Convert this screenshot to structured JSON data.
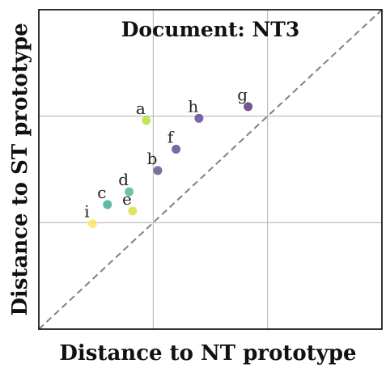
{
  "chart_data": {
    "type": "scatter",
    "title": "Document: NT3",
    "xlabel": "Distance to NT prototype",
    "ylabel": "Distance to ST prototype",
    "xlim": [
      0,
      3
    ],
    "ylim": [
      0,
      3
    ],
    "grid": true,
    "diagonal_reference": true,
    "points": [
      {
        "label": "a",
        "x": 0.94,
        "y": 1.96,
        "color": "#b5de2b"
      },
      {
        "label": "b",
        "x": 1.04,
        "y": 1.49,
        "color": "#5f4a8b"
      },
      {
        "label": "c",
        "x": 0.6,
        "y": 1.17,
        "color": "#3aa88f"
      },
      {
        "label": "d",
        "x": 0.79,
        "y": 1.29,
        "color": "#4fae97"
      },
      {
        "label": "e",
        "x": 0.82,
        "y": 1.11,
        "color": "#d6e03a"
      },
      {
        "label": "f",
        "x": 1.2,
        "y": 1.69,
        "color": "#5b4090"
      },
      {
        "label": "g",
        "x": 1.83,
        "y": 2.09,
        "color": "#532b74"
      },
      {
        "label": "h",
        "x": 1.4,
        "y": 1.98,
        "color": "#5a3f8d"
      },
      {
        "label": "i",
        "x": 0.47,
        "y": 0.99,
        "color": "#f6e75a"
      }
    ]
  }
}
